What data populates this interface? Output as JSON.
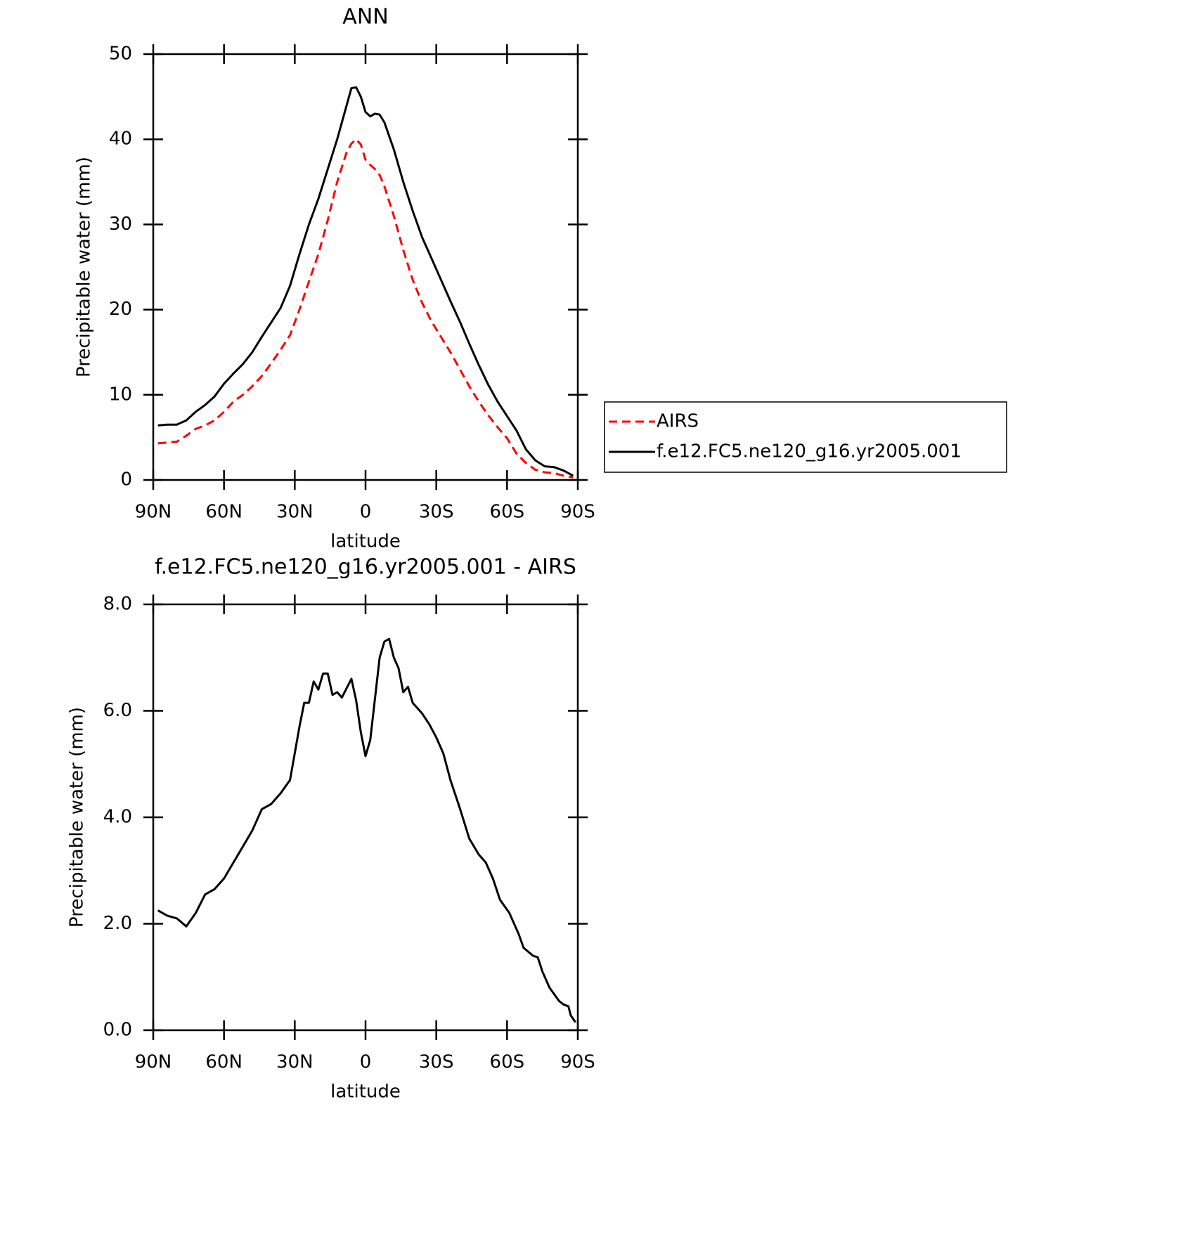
{
  "chart_data": [
    {
      "type": "line",
      "title": "ANN",
      "xlabel": "latitude",
      "ylabel": "Precipitable water (mm)",
      "x": [
        88,
        84,
        80,
        76,
        72,
        68,
        64,
        60,
        56,
        52,
        48,
        44,
        40,
        36,
        32,
        28,
        24,
        20,
        16,
        12,
        8,
        6,
        4,
        2,
        0,
        -2,
        -4,
        -6,
        -8,
        -12,
        -16,
        -20,
        -24,
        -28,
        -32,
        -36,
        -40,
        -44,
        -48,
        -52,
        -56,
        -60,
        -64,
        -68,
        -72,
        -76,
        -80,
        -84,
        -88
      ],
      "series": [
        {
          "name": "AIRS",
          "color": "#ff0000",
          "linestyle": "dashed",
          "values": [
            4.3,
            4.4,
            4.5,
            5.2,
            6.0,
            6.4,
            7.0,
            8.0,
            9.2,
            10.0,
            11.0,
            12.2,
            13.7,
            15.3,
            17.0,
            20.0,
            23.3,
            26.5,
            30.5,
            35.0,
            38.5,
            39.5,
            40.0,
            39.4,
            37.6,
            37.0,
            36.5,
            35.8,
            34.5,
            31.0,
            27.0,
            23.5,
            20.8,
            18.6,
            16.8,
            15.0,
            13.0,
            11.0,
            9.2,
            7.6,
            6.2,
            4.9,
            3.1,
            2.0,
            1.2,
            0.9,
            0.8,
            0.5,
            0.3
          ]
        },
        {
          "name": "f.e12.FC5.ne120_g16.yr2005.001",
          "color": "#000000",
          "linestyle": "solid",
          "values": [
            6.4,
            6.5,
            6.5,
            7.0,
            8.0,
            8.8,
            9.8,
            11.3,
            12.5,
            13.6,
            15.0,
            16.8,
            18.5,
            20.2,
            22.8,
            26.5,
            30.0,
            33.0,
            36.5,
            40.0,
            44.0,
            46.0,
            46.1,
            45.0,
            43.2,
            42.7,
            43.0,
            42.9,
            42.0,
            38.8,
            35.0,
            31.6,
            28.5,
            26.0,
            23.5,
            21.0,
            18.6,
            16.0,
            13.5,
            11.2,
            9.2,
            7.5,
            5.8,
            3.6,
            2.3,
            1.6,
            1.5,
            1.1,
            0.5
          ]
        }
      ],
      "xlim": [
        90,
        -90
      ],
      "xticks": [
        {
          "value": 90,
          "label": "90N"
        },
        {
          "value": 60,
          "label": "60N"
        },
        {
          "value": 30,
          "label": "30N"
        },
        0,
        {
          "value": -30,
          "label": "30S"
        },
        {
          "value": -60,
          "label": "60S"
        },
        {
          "value": -90,
          "label": "90S"
        }
      ],
      "ylim": [
        0,
        50
      ],
      "yticks": [
        0,
        10,
        20,
        30,
        40,
        50
      ],
      "legend": "right"
    },
    {
      "type": "line",
      "title": "f.e12.FC5.ne120_g16.yr2005.001 - AIRS",
      "xlabel": "latitude",
      "ylabel": "Precipitable water (mm)",
      "x": [
        88,
        84,
        80,
        76,
        72,
        68,
        64,
        60,
        56,
        52,
        48,
        44,
        40,
        36,
        32,
        28,
        26,
        24,
        22,
        20,
        18,
        16,
        14,
        12,
        10,
        6,
        4,
        2,
        0,
        -2,
        -6,
        -8,
        -10,
        -12,
        -14,
        -16,
        -18,
        -20,
        -24,
        -27,
        -30,
        -33,
        -36,
        -40,
        -44,
        -48,
        -51,
        -54,
        -57,
        -61,
        -65,
        -67,
        -71,
        -73,
        -75,
        -78,
        -82,
        -84,
        -86,
        -87,
        -89
      ],
      "series": [
        {
          "color": "#000000",
          "linestyle": "solid",
          "values": [
            2.25,
            2.15,
            2.1,
            1.95,
            2.2,
            2.55,
            2.65,
            2.85,
            3.15,
            3.45,
            3.75,
            4.15,
            4.25,
            4.45,
            4.7,
            5.7,
            6.15,
            6.15,
            6.55,
            6.4,
            6.7,
            6.7,
            6.3,
            6.35,
            6.25,
            6.6,
            6.2,
            5.6,
            5.15,
            5.45,
            7.0,
            7.3,
            7.35,
            7.0,
            6.8,
            6.35,
            6.45,
            6.15,
            5.95,
            5.75,
            5.5,
            5.2,
            4.7,
            4.17,
            3.6,
            3.3,
            3.15,
            2.85,
            2.45,
            2.2,
            1.8,
            1.55,
            1.4,
            1.37,
            1.1,
            0.8,
            0.55,
            0.48,
            0.45,
            0.28,
            0.15
          ]
        }
      ],
      "xlim": [
        90,
        -90
      ],
      "xticks": [
        {
          "value": 90,
          "label": "90N"
        },
        {
          "value": 60,
          "label": "60N"
        },
        {
          "value": 30,
          "label": "30N"
        },
        0,
        {
          "value": -30,
          "label": "30S"
        },
        {
          "value": -60,
          "label": "60S"
        },
        {
          "value": -90,
          "label": "90S"
        }
      ],
      "ylim": [
        0,
        8
      ],
      "yticks": [
        {
          "value": 0,
          "label": "0.0"
        },
        {
          "value": 2,
          "label": "2.0"
        },
        {
          "value": 4,
          "label": "4.0"
        },
        {
          "value": 6,
          "label": "6.0"
        },
        {
          "value": 8,
          "label": "8.0"
        }
      ]
    }
  ]
}
